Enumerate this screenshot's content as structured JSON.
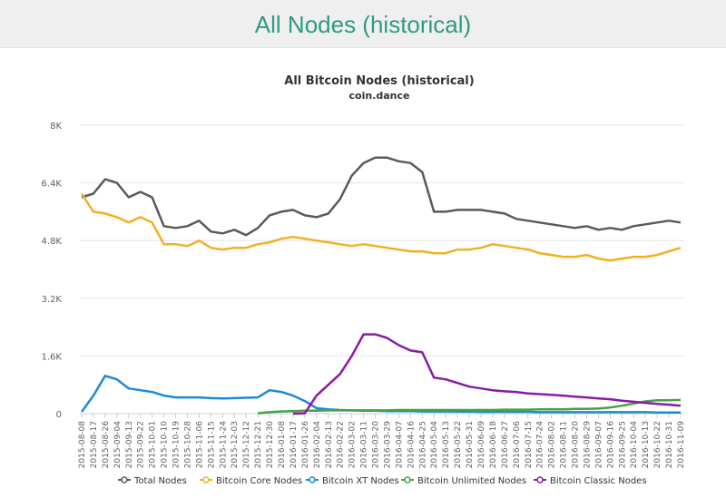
{
  "page": {
    "title": "All Nodes (historical)"
  },
  "chart_data": {
    "type": "line",
    "title": "All Bitcoin Nodes (historical)",
    "subtitle": "coin.dance",
    "ylim": [
      0,
      8000
    ],
    "yticks": [
      {
        "value": 0,
        "label": "0"
      },
      {
        "value": 1600,
        "label": "1.6K"
      },
      {
        "value": 3200,
        "label": "3.2K"
      },
      {
        "value": 4800,
        "label": "4.8K"
      },
      {
        "value": 6400,
        "label": "6.4K"
      },
      {
        "value": 8000,
        "label": "8K"
      }
    ],
    "grid": "horizontal",
    "legend": "bottom",
    "categories": [
      "2015-08-08",
      "2015-08-17",
      "2015-08-26",
      "2015-09-04",
      "2015-09-13",
      "2015-09-22",
      "2015-10-01",
      "2015-10-10",
      "2015-10-19",
      "2015-10-28",
      "2015-11-06",
      "2015-11-15",
      "2015-11-24",
      "2015-12-03",
      "2015-12-12",
      "2015-12-21",
      "2015-12-30",
      "2016-01-08",
      "2016-01-17",
      "2016-01-26",
      "2016-02-04",
      "2016-02-13",
      "2016-02-22",
      "2016-03-02",
      "2016-03-11",
      "2016-03-20",
      "2016-03-29",
      "2016-04-07",
      "2016-04-16",
      "2016-04-25",
      "2016-05-04",
      "2016-05-13",
      "2016-05-22",
      "2016-05-31",
      "2016-06-09",
      "2016-06-18",
      "2016-06-27",
      "2016-07-06",
      "2016-07-15",
      "2016-07-24",
      "2016-08-02",
      "2016-08-11",
      "2016-08-20",
      "2016-08-29",
      "2016-09-07",
      "2016-09-16",
      "2016-09-25",
      "2016-10-04",
      "2016-10-13",
      "2016-10-22",
      "2016-10-31",
      "2016-11-09"
    ],
    "series": [
      {
        "name": "Total Nodes",
        "color": "#5a5a5a",
        "values": [
          6000,
          6100,
          6500,
          6400,
          6000,
          6150,
          6000,
          5200,
          5150,
          5200,
          5350,
          5050,
          5000,
          5100,
          4950,
          5150,
          5500,
          5600,
          5650,
          5500,
          5450,
          5550,
          5950,
          6600,
          6950,
          7100,
          7100,
          7000,
          6950,
          6700,
          5600,
          5600,
          5650,
          5650,
          5650,
          5600,
          5550,
          5400,
          5350,
          5300,
          5250,
          5200,
          5150,
          5200,
          5100,
          5150,
          5100,
          5200,
          5250,
          5300,
          5350,
          5300
        ]
      },
      {
        "name": "Bitcoin Core Nodes",
        "color": "#f2b01e",
        "values": [
          6100,
          5600,
          5550,
          5450,
          5300,
          5450,
          5300,
          4700,
          4700,
          4650,
          4800,
          4600,
          4550,
          4600,
          4600,
          4700,
          4750,
          4850,
          4900,
          4850,
          4800,
          4750,
          4700,
          4650,
          4700,
          4650,
          4600,
          4550,
          4500,
          4500,
          4450,
          4450,
          4550,
          4550,
          4600,
          4700,
          4650,
          4600,
          4550,
          4450,
          4400,
          4350,
          4350,
          4400,
          4300,
          4250,
          4300,
          4350,
          4350,
          4400,
          4500,
          4600
        ]
      },
      {
        "name": "Bitcoin XT Nodes",
        "color": "#1e8ad6",
        "values": [
          50,
          500,
          1050,
          950,
          700,
          650,
          600,
          500,
          450,
          450,
          450,
          430,
          420,
          430,
          440,
          450,
          650,
          600,
          500,
          350,
          150,
          120,
          100,
          90,
          80,
          80,
          70,
          70,
          70,
          60,
          60,
          60,
          55,
          55,
          50,
          50,
          50,
          50,
          50,
          40,
          40,
          40,
          40,
          40,
          40,
          40,
          40,
          40,
          40,
          30,
          30,
          30
        ]
      },
      {
        "name": "Bitcoin Unlimited Nodes",
        "color": "#43a343",
        "values": [
          null,
          null,
          null,
          null,
          null,
          null,
          null,
          null,
          null,
          null,
          null,
          null,
          null,
          null,
          null,
          10,
          40,
          60,
          70,
          80,
          80,
          90,
          90,
          90,
          90,
          90,
          90,
          100,
          100,
          100,
          100,
          100,
          100,
          100,
          100,
          100,
          110,
          110,
          110,
          120,
          120,
          120,
          130,
          130,
          140,
          170,
          220,
          280,
          340,
          370,
          370,
          380
        ]
      },
      {
        "name": "Bitcoin Classic Nodes",
        "color": "#8a1aa6",
        "values": [
          null,
          null,
          null,
          null,
          null,
          null,
          null,
          null,
          null,
          null,
          null,
          null,
          null,
          null,
          null,
          null,
          null,
          null,
          0,
          10,
          500,
          800,
          1100,
          1600,
          2200,
          2200,
          2100,
          1900,
          1750,
          1700,
          1000,
          950,
          850,
          750,
          700,
          650,
          620,
          600,
          560,
          540,
          520,
          500,
          470,
          450,
          420,
          400,
          360,
          330,
          300,
          270,
          250,
          220
        ]
      }
    ]
  }
}
